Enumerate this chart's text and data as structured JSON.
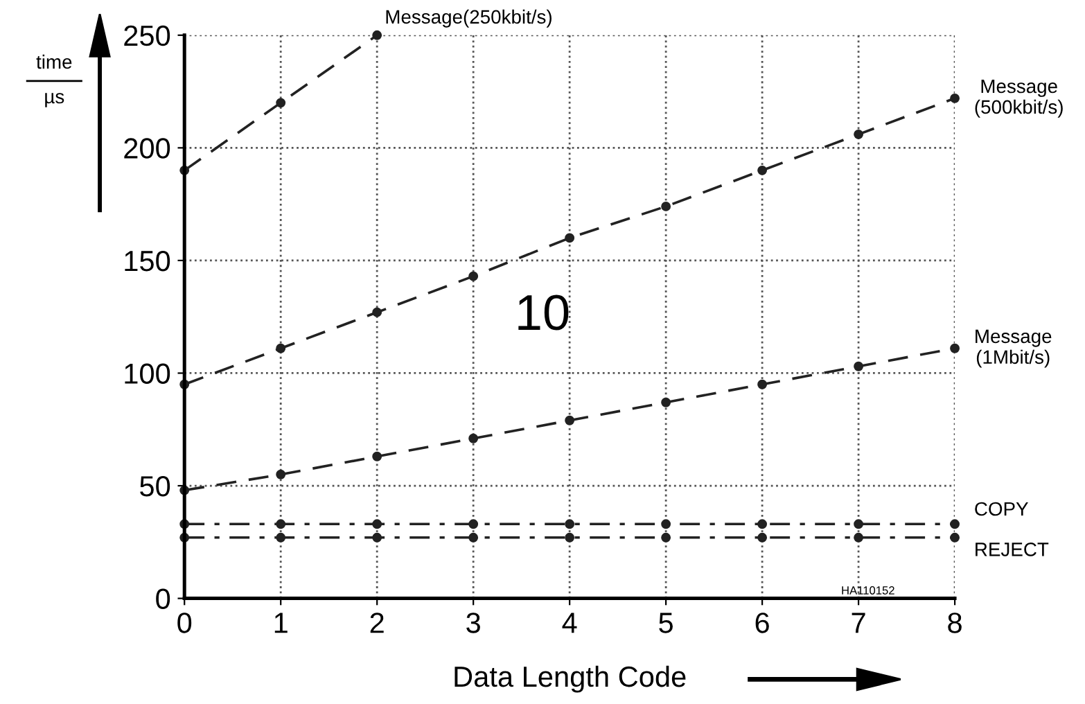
{
  "chart_data": {
    "type": "line",
    "xlabel": "Data Length Code",
    "ylabel": "time\nµs",
    "x": [
      0,
      1,
      2,
      3,
      4,
      5,
      6,
      7,
      8
    ],
    "series": [
      {
        "name": "Message(250kbit/s)",
        "color": "#222222",
        "line_style": "dashed",
        "values": [
          190,
          220,
          250,
          null,
          null,
          null,
          null,
          null,
          null
        ]
      },
      {
        "name": "Message\n(500kbit/s)",
        "color": "#222222",
        "line_style": "dashed",
        "values": [
          95,
          111,
          127,
          143,
          160,
          174,
          190,
          206,
          222
        ]
      },
      {
        "name": "Message\n(1Mbit/s)",
        "color": "#222222",
        "line_style": "dashed",
        "values": [
          48,
          55,
          63,
          71,
          79,
          87,
          95,
          103,
          111
        ]
      },
      {
        "name": "COPY",
        "color": "#222222",
        "line_style": "dashdot",
        "values": [
          33,
          33,
          33,
          33,
          33,
          33,
          33,
          33,
          33
        ]
      },
      {
        "name": "REJECT",
        "color": "#222222",
        "line_style": "dashdot",
        "values": [
          27,
          27,
          27,
          27,
          27,
          27,
          27,
          27,
          27
        ]
      }
    ],
    "xlim": [
      0,
      8
    ],
    "xticks": [
      0,
      1,
      2,
      3,
      4,
      5,
      6,
      7,
      8
    ],
    "ylim": [
      0,
      250
    ],
    "yticks": [
      0,
      50,
      100,
      150,
      200,
      250
    ],
    "grid": true,
    "legend": false,
    "marker": "circle",
    "annotations": [
      "10",
      "HA110152"
    ]
  }
}
